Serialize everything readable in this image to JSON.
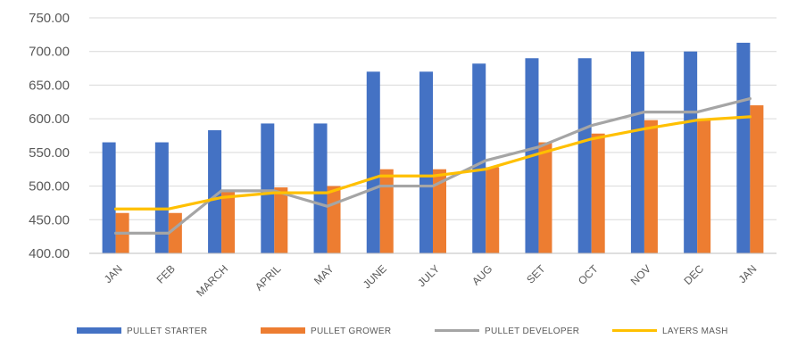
{
  "chart_data": {
    "type": "bar",
    "categories": [
      "JAN",
      "FEB",
      "MARCH",
      "APRIL",
      "MAY",
      "JUNE",
      "JULY",
      "AUG",
      "SET",
      "OCT",
      "NOV",
      "DEC",
      "JAN"
    ],
    "series": [
      {
        "name": "PULLET STARTER",
        "kind": "bar",
        "color": "#4472C4",
        "values": [
          565,
          565,
          583,
          593,
          593,
          670,
          670,
          682,
          690,
          690,
          700,
          700,
          713
        ]
      },
      {
        "name": "PULLET GROWER",
        "kind": "bar",
        "color": "#ED7D31",
        "values": [
          460,
          460,
          493,
          498,
          500,
          525,
          525,
          528,
          565,
          578,
          598,
          598,
          620
        ]
      },
      {
        "name": "PULLET DEVELOPER",
        "kind": "line",
        "color": "#A5A5A5",
        "values": [
          430,
          430,
          493,
          493,
          470,
          500,
          500,
          538,
          558,
          590,
          610,
          610,
          630
        ]
      },
      {
        "name": "LAYERS MASH",
        "kind": "line",
        "color": "#FFC000",
        "values": [
          466,
          466,
          483,
          490,
          490,
          515,
          515,
          525,
          548,
          570,
          585,
          598,
          603
        ]
      }
    ],
    "yticks": [
      "400.00",
      "450.00",
      "500.00",
      "550.00",
      "600.00",
      "650.00",
      "700.00",
      "750.00"
    ],
    "ylim": [
      400,
      750
    ],
    "title": "",
    "xlabel": "",
    "ylabel": "",
    "grid": true,
    "legend_position": "bottom"
  }
}
